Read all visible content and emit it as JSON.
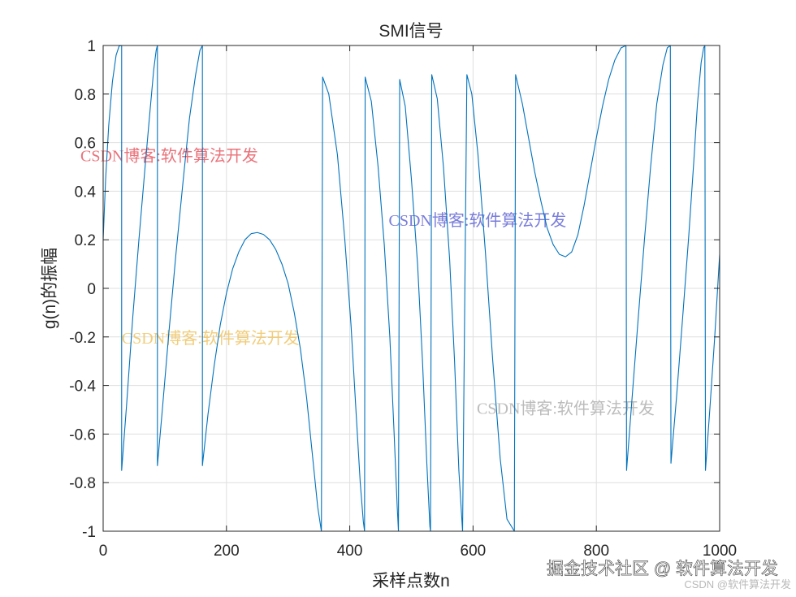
{
  "chart_data": {
    "type": "line",
    "title": "SMI信号",
    "xlabel": "采样点数n",
    "ylabel": "g(n)的振幅",
    "xlim": [
      0,
      1000
    ],
    "ylim": [
      -1,
      1
    ],
    "grid": true,
    "legend": "none",
    "xticks": [
      0,
      200,
      400,
      600,
      800,
      1000
    ],
    "xtick_labels": [
      "0",
      "200",
      "400",
      "600",
      "800",
      "1000"
    ],
    "yticks": [
      1,
      0.8,
      0.6,
      0.4,
      0.2,
      0,
      -0.2,
      -0.4,
      -0.6,
      -0.8,
      -1
    ],
    "ytick_labels": [
      "1",
      "0.8",
      "0.6",
      "0.4",
      "0.2",
      "0",
      "-0.2",
      "-0.4",
      "-0.6",
      "-0.8",
      "-1"
    ],
    "series": [
      {
        "color": "#0072BD",
        "segments": [
          [
            [
              0,
              0.2
            ],
            [
              4,
              0.45
            ],
            [
              9,
              0.67
            ],
            [
              15,
              0.85
            ],
            [
              21,
              0.96
            ],
            [
              26,
              0.998
            ],
            [
              30,
              1.0
            ]
          ],
          [
            [
              30,
              -0.75
            ],
            [
              38,
              -0.48
            ],
            [
              48,
              -0.12
            ],
            [
              58,
              0.2
            ],
            [
              68,
              0.5
            ],
            [
              76,
              0.73
            ],
            [
              82,
              0.9
            ],
            [
              86,
              0.98
            ],
            [
              88,
              1.0
            ]
          ],
          [
            [
              88,
              -0.73
            ],
            [
              96,
              -0.5
            ],
            [
              106,
              -0.2
            ],
            [
              118,
              0.14
            ],
            [
              130,
              0.45
            ],
            [
              140,
              0.7
            ],
            [
              150,
              0.88
            ],
            [
              157,
              0.98
            ],
            [
              161,
              1.0
            ]
          ],
          [
            [
              161,
              -0.73
            ],
            [
              170,
              -0.52
            ],
            [
              180,
              -0.32
            ],
            [
              190,
              -0.15
            ],
            [
              200,
              -0.02
            ],
            [
              210,
              0.08
            ],
            [
              220,
              0.15
            ],
            [
              230,
              0.2
            ],
            [
              240,
              0.225
            ],
            [
              250,
              0.23
            ],
            [
              260,
              0.222
            ],
            [
              270,
              0.2
            ],
            [
              280,
              0.16
            ],
            [
              290,
              0.1
            ],
            [
              300,
              0.02
            ],
            [
              310,
              -0.1
            ],
            [
              320,
              -0.25
            ],
            [
              330,
              -0.45
            ],
            [
              340,
              -0.7
            ],
            [
              348,
              -0.9
            ],
            [
              354,
              -1.0
            ]
          ],
          [
            [
              356,
              0.87
            ],
            [
              366,
              0.8
            ],
            [
              380,
              0.55
            ],
            [
              392,
              0.2
            ],
            [
              402,
              -0.15
            ],
            [
              410,
              -0.5
            ],
            [
              417,
              -0.8
            ],
            [
              422,
              -0.96
            ],
            [
              424,
              -1.0
            ]
          ],
          [
            [
              425,
              0.87
            ],
            [
              435,
              0.77
            ],
            [
              446,
              0.5
            ],
            [
              456,
              0.18
            ],
            [
              465,
              -0.2
            ],
            [
              472,
              -0.6
            ],
            [
              477,
              -0.9
            ],
            [
              479,
              -1.0
            ]
          ],
          [
            [
              481,
              0.86
            ],
            [
              490,
              0.75
            ],
            [
              500,
              0.45
            ],
            [
              510,
              0.1
            ],
            [
              518,
              -0.3
            ],
            [
              525,
              -0.72
            ],
            [
              530,
              -0.98
            ],
            [
              531,
              -1.0
            ]
          ],
          [
            [
              533,
              0.88
            ],
            [
              542,
              0.78
            ],
            [
              552,
              0.5
            ],
            [
              562,
              0.12
            ],
            [
              570,
              -0.3
            ],
            [
              577,
              -0.75
            ],
            [
              583,
              -1.0
            ]
          ],
          [
            [
              590,
              0.88
            ],
            [
              598,
              0.8
            ],
            [
              608,
              0.55
            ],
            [
              620,
              0.15
            ],
            [
              632,
              -0.3
            ],
            [
              644,
              -0.7
            ],
            [
              655,
              -0.95
            ],
            [
              667,
              -1.0
            ]
          ],
          [
            [
              669,
              0.88
            ],
            [
              680,
              0.76
            ],
            [
              690,
              0.62
            ],
            [
              700,
              0.48
            ],
            [
              710,
              0.36
            ],
            [
              720,
              0.25
            ],
            [
              730,
              0.18
            ],
            [
              740,
              0.14
            ],
            [
              750,
              0.13
            ],
            [
              760,
              0.15
            ],
            [
              770,
              0.22
            ],
            [
              780,
              0.34
            ],
            [
              790,
              0.48
            ],
            [
              800,
              0.62
            ],
            [
              810,
              0.75
            ],
            [
              820,
              0.86
            ],
            [
              830,
              0.94
            ],
            [
              840,
              0.99
            ],
            [
              848,
              1.0
            ]
          ],
          [
            [
              849,
              -0.75
            ],
            [
              858,
              -0.45
            ],
            [
              868,
              -0.12
            ],
            [
              878,
              0.2
            ],
            [
              888,
              0.5
            ],
            [
              898,
              0.76
            ],
            [
              908,
              0.92
            ],
            [
              915,
              0.99
            ],
            [
              920,
              1.0
            ]
          ],
          [
            [
              921,
              -0.72
            ],
            [
              930,
              -0.45
            ],
            [
              940,
              -0.12
            ],
            [
              950,
              0.22
            ],
            [
              958,
              0.52
            ],
            [
              964,
              0.76
            ],
            [
              970,
              0.93
            ],
            [
              974,
              0.99
            ],
            [
              976,
              1.0
            ]
          ],
          [
            [
              977,
              -0.75
            ],
            [
              984,
              -0.5
            ],
            [
              992,
              -0.2
            ],
            [
              1000,
              0.14
            ]
          ]
        ]
      }
    ],
    "watermarks": [
      {
        "text": "CSDN博客:软件算法开发",
        "color": "#e8636b",
        "x": 0,
        "y": 0.55
      },
      {
        "text": "CSDN博客:软件算法开发",
        "color": "#6c6fd6",
        "x": 500,
        "y": 0.285
      },
      {
        "text": "CSDN博客:软件算法开发",
        "color": "#f0c86c",
        "x": 67,
        "y": -0.2
      },
      {
        "text": "CSDN博客:软件算法开发",
        "color": "#b5b5b5",
        "x": 643,
        "y": -0.49
      }
    ]
  },
  "footer": {
    "watermark_main": "掘金技术社区 @ 软件算法开发",
    "watermark_sub": "CSDN @软件算法开发"
  }
}
